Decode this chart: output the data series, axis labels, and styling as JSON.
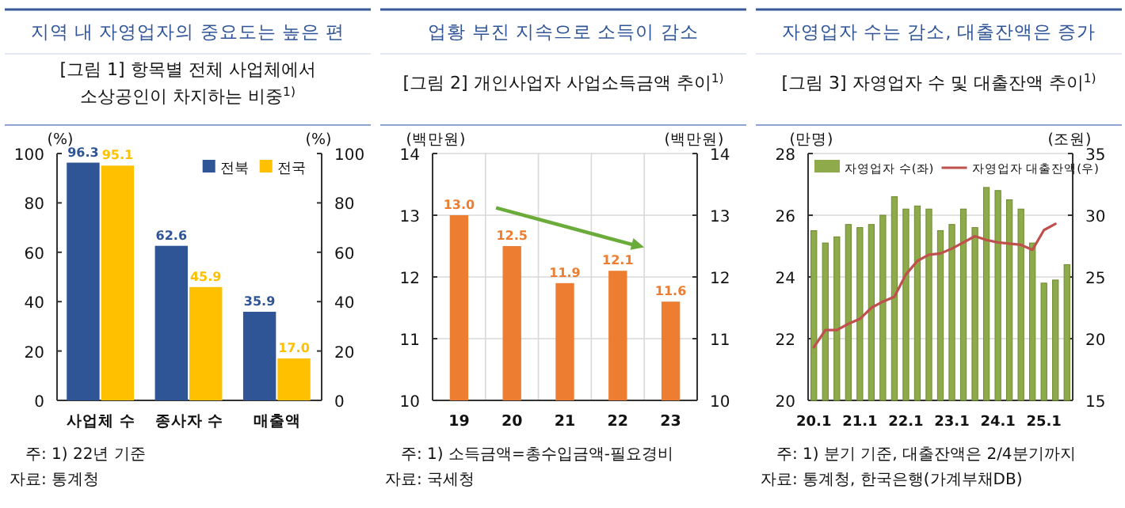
{
  "chart_data": [
    {
      "type": "bar",
      "title": "지역 내 자영업자의 중요도는 높은 편",
      "subtitle": "[그림 1] 항목별 전체 사업체에서 소상공인이 차지하는 비중$^{1)}$",
      "ylabel": "(%)",
      "y2label": "(%)",
      "categories": [
        "사업체 수",
        "종사자 수",
        "매출액"
      ],
      "series": [
        {
          "name": "전북",
          "color": "#2f5597",
          "values": [
            96.3,
            62.6,
            35.9
          ],
          "value_labels": [
            "96.3",
            "62.6",
            "35.9"
          ]
        },
        {
          "name": "전국",
          "color": "#ffc000",
          "values": [
            95.1,
            45.9,
            17.0
          ],
          "value_labels": [
            "95.1",
            "45.9",
            "17.0"
          ]
        }
      ],
      "ylim": [
        0,
        100
      ],
      "yticks": [
        0,
        20,
        40,
        60,
        80,
        100
      ],
      "y2lim": [
        0,
        100
      ],
      "y2ticks": [
        0,
        20,
        40,
        60,
        80,
        100
      ],
      "legend": "top right",
      "grid": false,
      "annotations": [
        "주: 1) 22년 기준",
        "자료: 통계청"
      ]
    },
    {
      "type": "bar",
      "title": "업황 부진 지속으로 소득이 감소",
      "subtitle": "[그림 2] 개인사업자 사업소득금액 추이$^{1)}$",
      "ylabel": "(백만원)",
      "y2label": "(백만원)",
      "categories": [
        "19",
        "20",
        "21",
        "22",
        "23"
      ],
      "series": [
        {
          "color": "#ed7d31",
          "values": [
            13.0,
            12.5,
            11.9,
            12.1,
            11.6
          ],
          "value_labels": [
            "13.0",
            "12.5",
            "11.9",
            "12.1",
            "11.6"
          ]
        }
      ],
      "ylim": [
        10,
        14
      ],
      "yticks": [
        10,
        11,
        12,
        13,
        14
      ],
      "y2lim": [
        10,
        14
      ],
      "y2ticks": [
        10,
        11,
        12,
        13,
        14
      ],
      "grid": true,
      "annotations": [
        "주: 1) 소득금액=총수입금액-필요경비",
        "자료: 국세청"
      ]
    },
    {
      "type": "bar",
      "title": "자영업자 수는 감소, 대출잔액은 증가",
      "subtitle": "[그림 3] 자영업자 수 및 대출잔액 추이$^{1)}$",
      "ylabel": "(만명)",
      "y2label": "(조원)",
      "categories": [
        "20.1",
        null,
        null,
        null,
        "21.1",
        null,
        null,
        null,
        "22.1",
        null,
        null,
        null,
        "23.1",
        null,
        null,
        null,
        "24.1",
        null,
        null,
        null,
        "25.1",
        null,
        null
      ],
      "series": [
        {
          "name": "자영업자 수(좌)",
          "color": "#8faa4a",
          "values": [
            25.5,
            25.1,
            25.3,
            25.7,
            25.6,
            25.7,
            26.0,
            26.6,
            26.2,
            26.3,
            26.2,
            25.5,
            25.7,
            26.2,
            25.6,
            26.9,
            26.8,
            26.5,
            26.2,
            25.1,
            23.8,
            23.9,
            24.4
          ]
        },
        {
          "name": "자영업자 대출잔액(우)",
          "type": "line",
          "axis": "y2",
          "color": "#c0504d",
          "values": [
            19.3,
            20.7,
            20.7,
            21.2,
            21.6,
            22.5,
            23.0,
            23.4,
            25.2,
            26.3,
            26.8,
            26.9,
            27.3,
            27.8,
            28.3,
            28.0,
            27.8,
            27.7,
            27.6,
            27.2,
            28.8,
            29.3,
            null
          ]
        }
      ],
      "ylim": [
        20,
        28
      ],
      "yticks": [
        20,
        22,
        24,
        26,
        28
      ],
      "y2lim": [
        15,
        35
      ],
      "y2ticks": [
        15,
        20,
        25,
        30,
        35
      ],
      "legend": "top",
      "grid": "y",
      "annotations": [
        "주: 1) 분기 기준, 대출잔액은 2/4분기까지",
        "자료: 통계청, 한국은행(가계부채DB)"
      ]
    }
  ]
}
